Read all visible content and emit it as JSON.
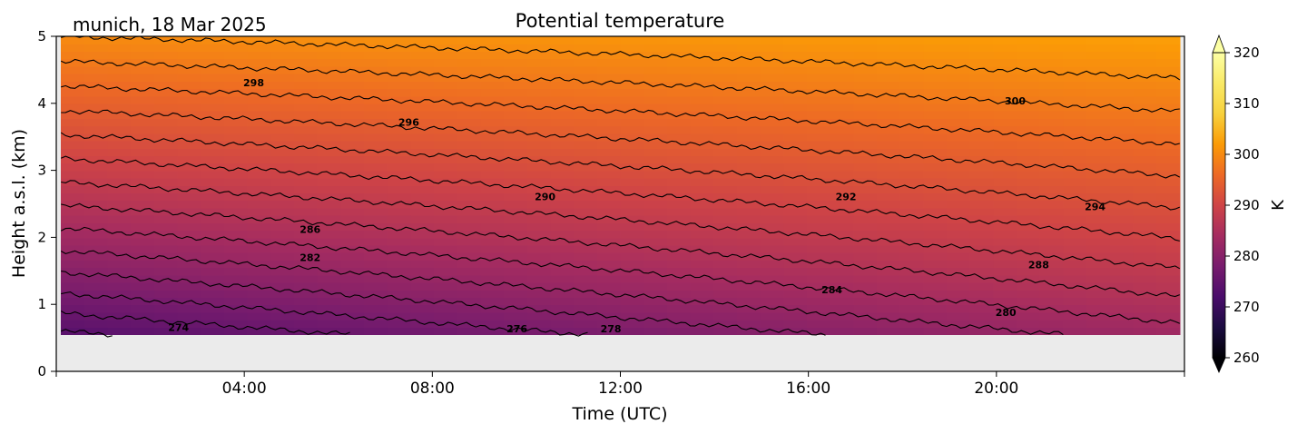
{
  "chart_data": {
    "type": "heatmap",
    "title": "Potential temperature",
    "subtitle": "munich, 18 Mar 2025",
    "xlabel": "Time (UTC)",
    "ylabel": "Height a.s.l. (km)",
    "xlim_hours": [
      0,
      24
    ],
    "ylim_km": [
      0,
      5
    ],
    "x_ticks": [
      "04:00",
      "08:00",
      "12:00",
      "16:00",
      "20:00"
    ],
    "x_tick_hours": [
      4,
      8,
      12,
      16,
      20
    ],
    "y_ticks": [
      "0",
      "1",
      "2",
      "3",
      "4",
      "5"
    ],
    "y_tick_values": [
      0,
      1,
      2,
      3,
      4,
      5
    ],
    "data_extent": {
      "x_hours": [
        0.1,
        23.9
      ],
      "y_km": [
        0.55,
        5.0
      ]
    },
    "no_data_color": "#ebebeb",
    "colormap": "inferno",
    "colorbar": {
      "label": "K",
      "min": 260,
      "max": 320,
      "ticks": [
        "260",
        "270",
        "280",
        "290",
        "300",
        "310",
        "320"
      ],
      "tick_values": [
        260,
        270,
        280,
        290,
        300,
        310,
        320
      ],
      "extend": "both"
    },
    "field": {
      "description_units": "K",
      "surface_value_start": 273.5,
      "surface_value_end": 283,
      "top_value_start": 300,
      "top_value_end": 302.5
    },
    "contour_levels": [
      274,
      276,
      278,
      280,
      282,
      284,
      286,
      288,
      290,
      292,
      294,
      296,
      298,
      300
    ],
    "contour_labels": [
      {
        "text": "274",
        "x_hours": 2.6,
        "y_km": 0.66
      },
      {
        "text": "276",
        "x_hours": 9.8,
        "y_km": 0.64
      },
      {
        "text": "278",
        "x_hours": 11.8,
        "y_km": 0.64
      },
      {
        "text": "280",
        "x_hours": 20.2,
        "y_km": 0.88
      },
      {
        "text": "282",
        "x_hours": 5.4,
        "y_km": 1.7
      },
      {
        "text": "284",
        "x_hours": 16.5,
        "y_km": 1.22
      },
      {
        "text": "286",
        "x_hours": 5.4,
        "y_km": 2.12
      },
      {
        "text": "288",
        "x_hours": 20.9,
        "y_km": 1.59
      },
      {
        "text": "290",
        "x_hours": 10.4,
        "y_km": 2.61
      },
      {
        "text": "292",
        "x_hours": 16.8,
        "y_km": 2.61
      },
      {
        "text": "294",
        "x_hours": 22.1,
        "y_km": 2.46
      },
      {
        "text": "296",
        "x_hours": 7.5,
        "y_km": 3.72
      },
      {
        "text": "298",
        "x_hours": 4.2,
        "y_km": 4.31
      },
      {
        "text": "300",
        "x_hours": 20.4,
        "y_km": 4.04
      }
    ],
    "grid": false,
    "legend": "none"
  }
}
